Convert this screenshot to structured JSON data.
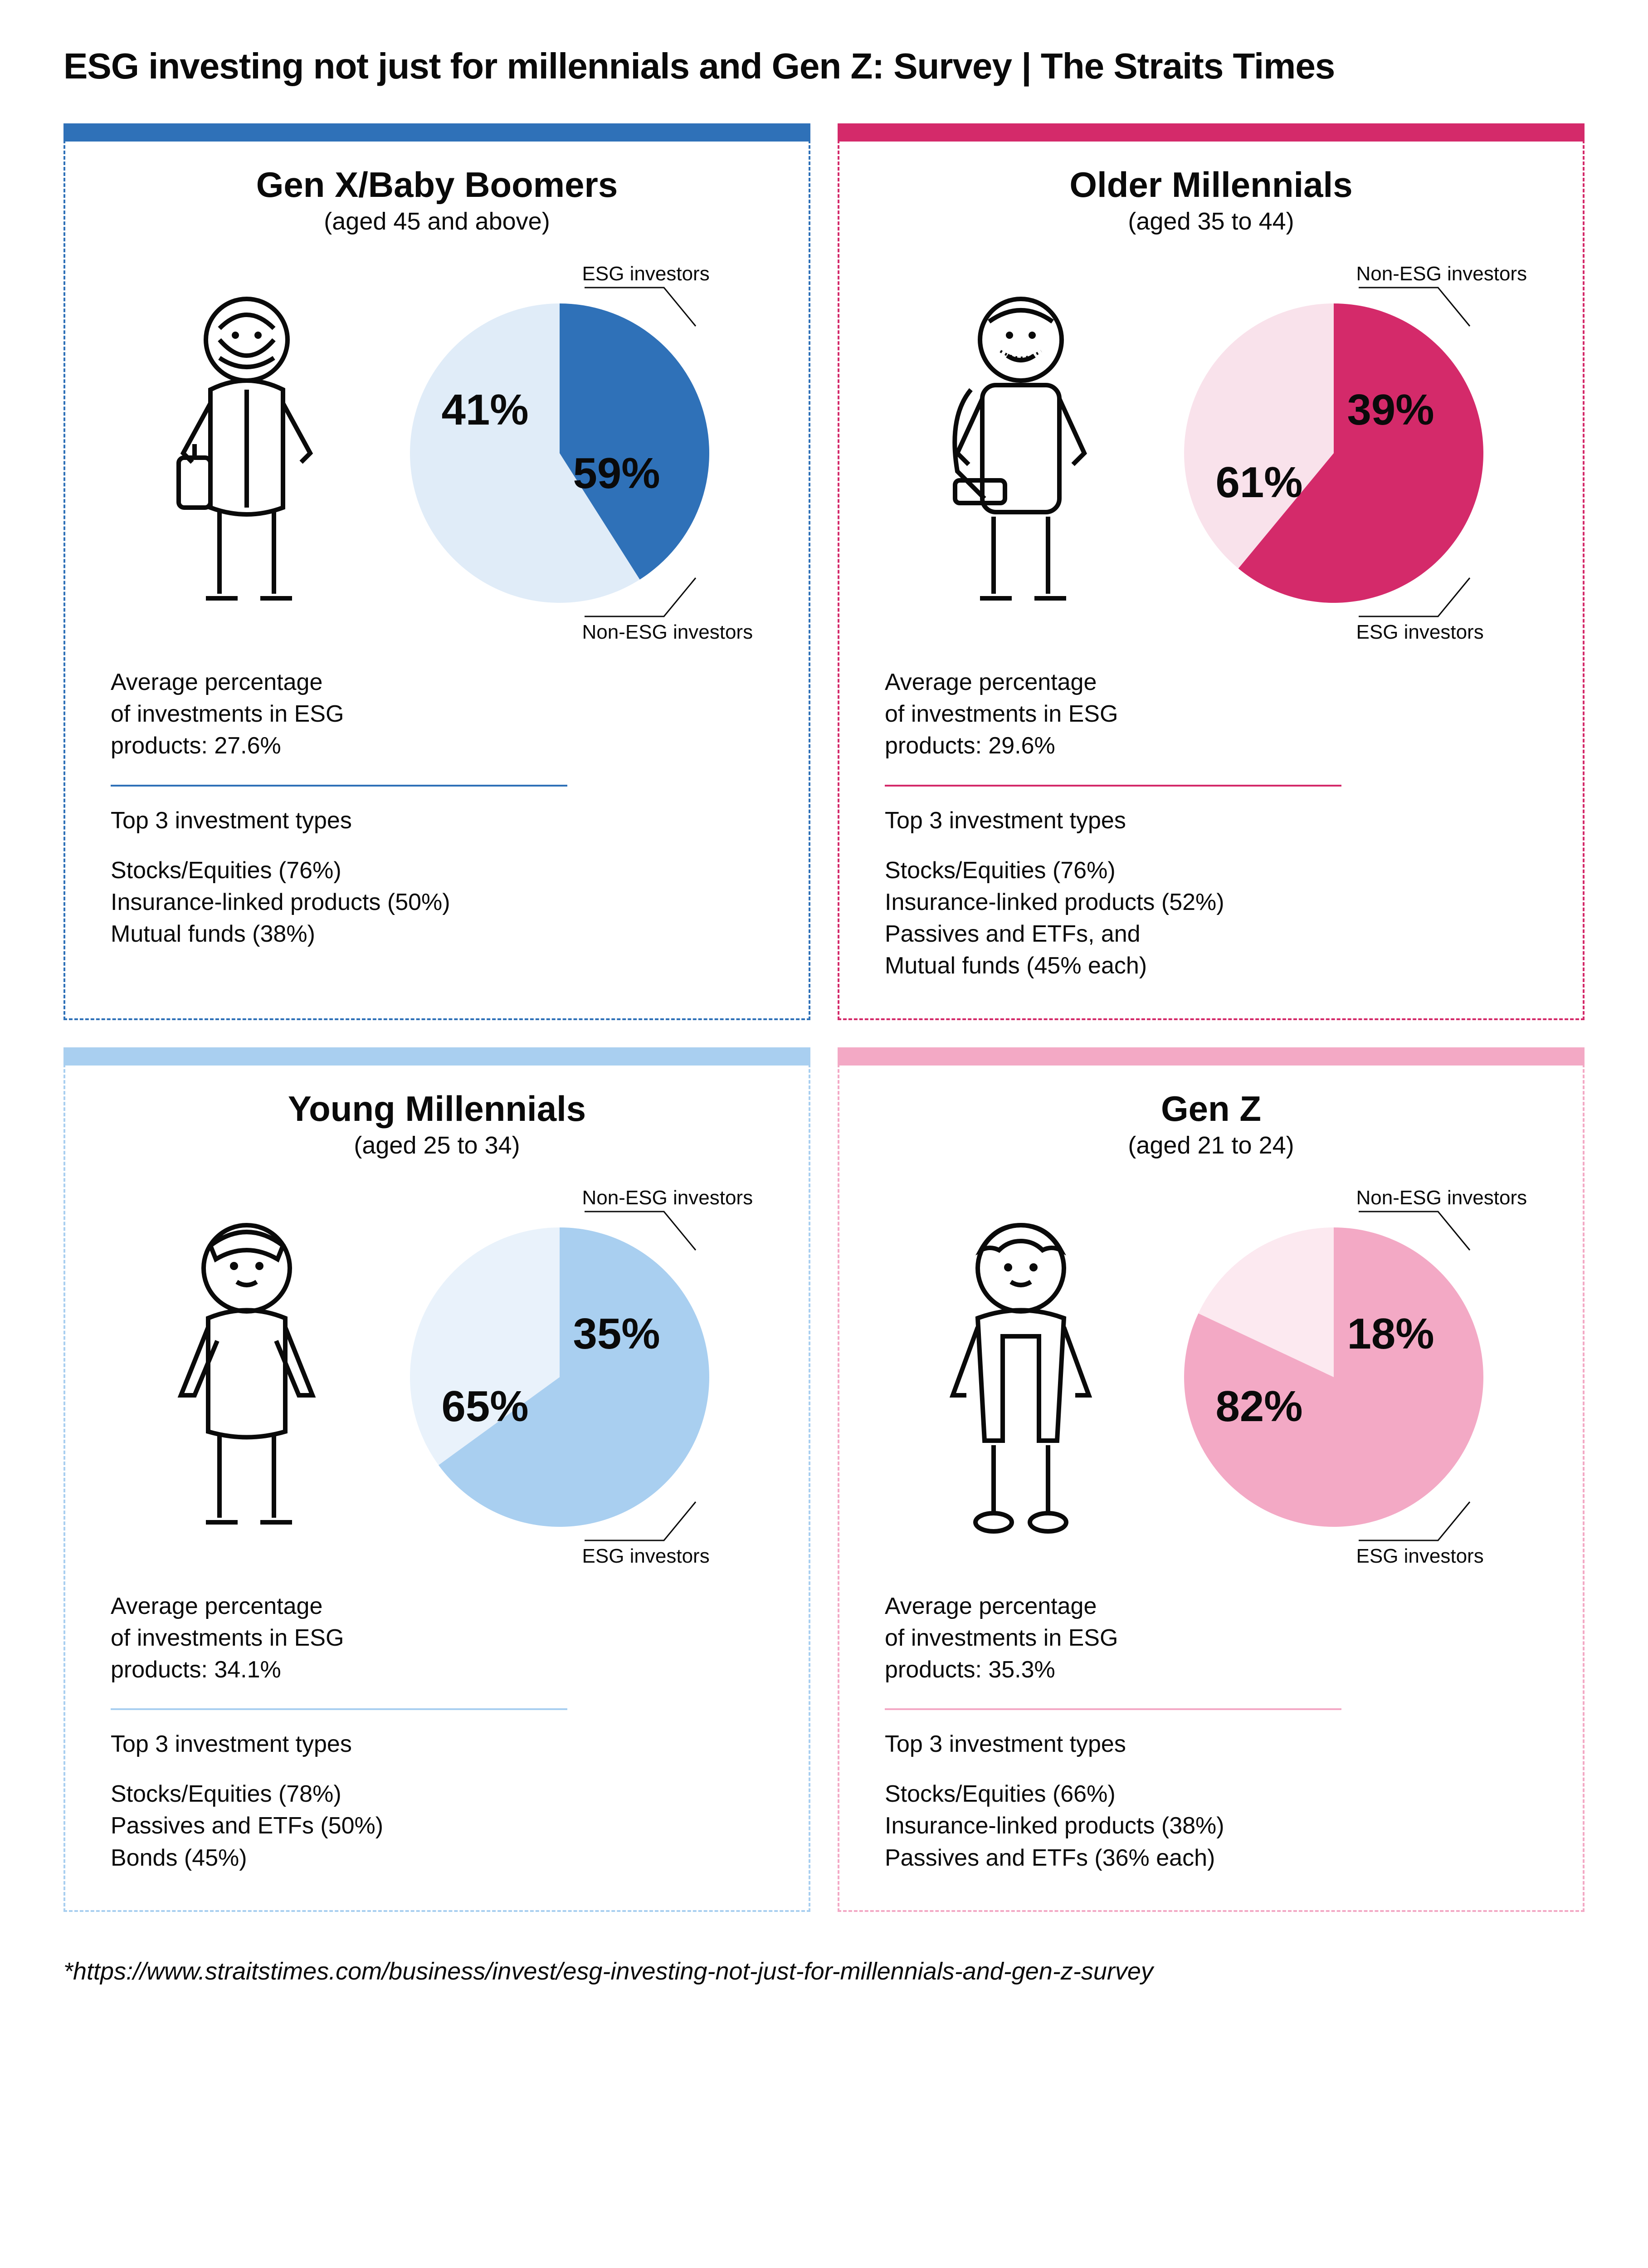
{
  "title": "ESG investing not just for millennials and Gen Z: Survey | The Straits Times",
  "footer": "*https://www.straitstimes.com/business/invest/esg-investing-not-just-for-millennials-and-gen-z-survey",
  "labels": {
    "esg": "ESG investors",
    "nonesg": "Non-ESG investors",
    "avg_prefix": "Average percentage",
    "avg_mid": "of investments in ESG",
    "avg_products": "products:",
    "top3": "Top 3 investment types"
  },
  "colors": {
    "blue_dark": "#2f71b8",
    "blue_light": "#e0ecf8",
    "blue_mid": "#a9cff0",
    "pink_dark": "#d42a6a",
    "pink_light": "#f9e2eb",
    "pink_mid": "#f3a9c5",
    "text": "#0a0a0a"
  },
  "panels": [
    {
      "key": "genx",
      "title": "Gen X/Baby Boomers",
      "sub": "(aged 45 and above)",
      "border_color": "#2f71b8",
      "topbar_color": "#2f71b8",
      "pie": {
        "esg_pct": 41,
        "non_pct": 59,
        "esg_color": "#2f71b8",
        "non_color": "#e0ecf8",
        "esg_label": "41%",
        "non_label": "59%",
        "start_deg": -90,
        "esg_label_pos": "tl",
        "callout_top_label": "ESG investors",
        "callout_bottom_label": "Non-ESG investors"
      },
      "avg": "27.6%",
      "hr_color": "#2f71b8",
      "inv": [
        "Stocks/Equities (76%)",
        "Insurance-linked products (50%)",
        "Mutual funds (38%)"
      ],
      "person": "boomer"
    },
    {
      "key": "older",
      "title": "Older Millennials",
      "sub": "(aged 35 to 44)",
      "border_color": "#d42a6a",
      "topbar_color": "#d42a6a",
      "pie": {
        "esg_pct": 61,
        "non_pct": 39,
        "esg_color": "#d42a6a",
        "non_color": "#f9e2eb",
        "esg_label": "61%",
        "non_label": "39%",
        "start_deg": -90,
        "esg_label_pos": "bl",
        "callout_top_label": "Non-ESG investors",
        "callout_bottom_label": "ESG investors"
      },
      "avg": "29.6%",
      "hr_color": "#d42a6a",
      "inv": [
        "Stocks/Equities (76%)",
        "Insurance-linked products (52%)",
        "Passives and ETFs, and",
        "Mutual funds (45% each)"
      ],
      "person": "older"
    },
    {
      "key": "young",
      "title": "Young Millennials",
      "sub": "(aged 25 to 34)",
      "border_color": "#a9cff0",
      "topbar_color": "#a9cff0",
      "pie": {
        "esg_pct": 65,
        "non_pct": 35,
        "esg_color": "#a9cff0",
        "non_color": "#e9f2fb",
        "esg_label": "65%",
        "non_label": "35%",
        "start_deg": -90,
        "esg_label_pos": "bl",
        "callout_top_label": "Non-ESG investors",
        "callout_bottom_label": "ESG investors"
      },
      "avg": "34.1%",
      "hr_color": "#a9cff0",
      "inv": [
        "Stocks/Equities (78%)",
        "Passives and ETFs (50%)",
        "Bonds (45%)"
      ],
      "person": "young"
    },
    {
      "key": "genz",
      "title": "Gen Z",
      "sub": "(aged 21 to 24)",
      "border_color": "#f3a9c5",
      "topbar_color": "#f3a9c5",
      "pie": {
        "esg_pct": 82,
        "non_pct": 18,
        "esg_color": "#f3a9c5",
        "non_color": "#fce9f0",
        "esg_label": "82%",
        "non_label": "18%",
        "start_deg": -90,
        "esg_label_pos": "bl",
        "callout_top_label": "Non-ESG investors",
        "callout_bottom_label": "ESG investors"
      },
      "avg": "35.3%",
      "hr_color": "#f3a9c5",
      "inv": [
        "Stocks/Equities (66%)",
        "Insurance-linked products (38%)",
        "Passives and ETFs (36% each)"
      ],
      "person": "genz"
    }
  ]
}
